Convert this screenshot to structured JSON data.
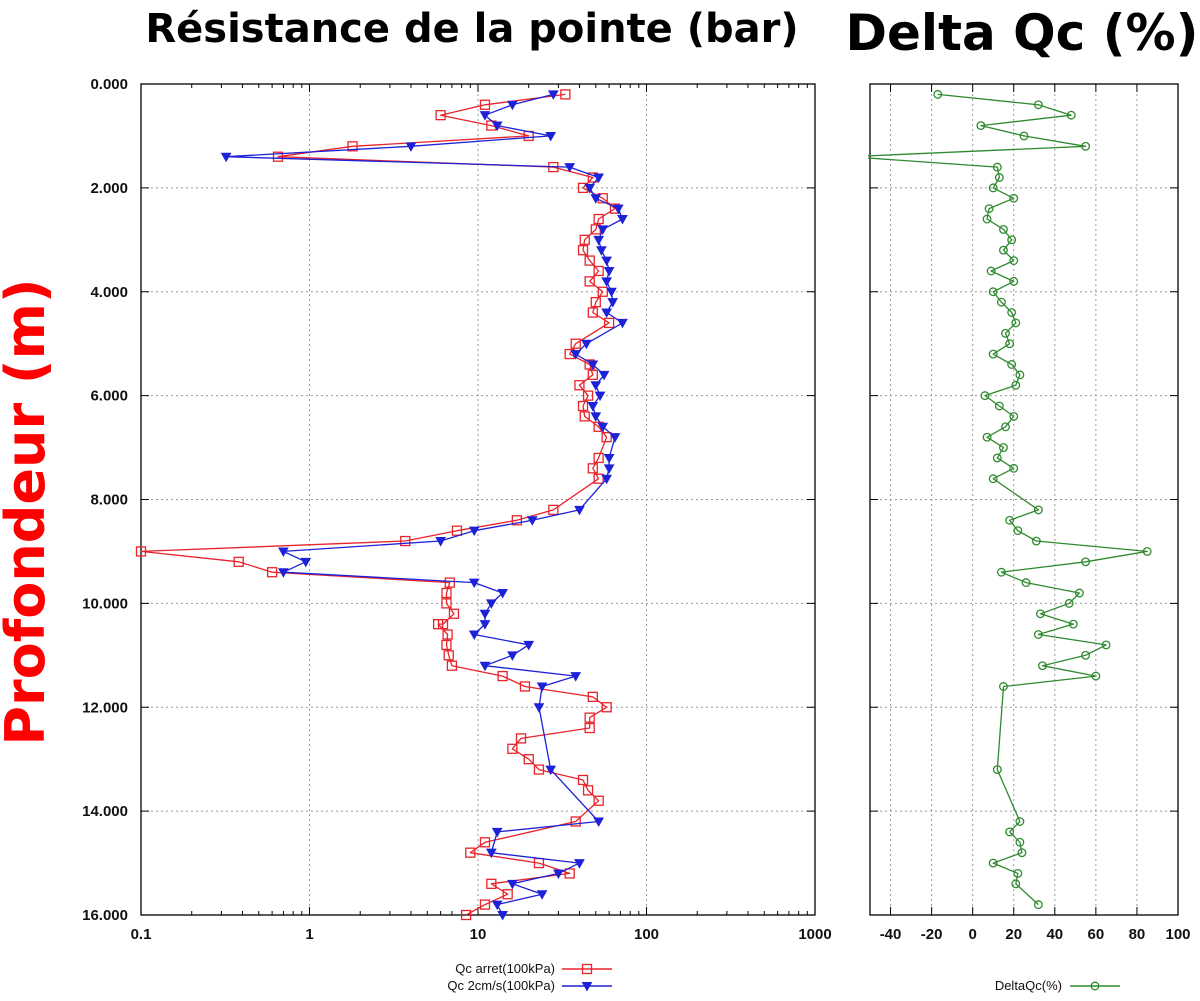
{
  "colors": {
    "red": "#e8232a",
    "blue": "#1d22d6",
    "green": "#2f8a2f",
    "axis": "#000000",
    "grid": "#9a9a9a",
    "ylabel": "#ff0000"
  },
  "chart_data": [
    {
      "type": "line",
      "title": "Résistance de la pointe (bar)",
      "ylabel": "Profondeur (m)",
      "xscale": "log",
      "xlim": [
        0.1,
        1000
      ],
      "ylim": [
        0,
        16
      ],
      "yinverted": true,
      "grid": true,
      "legend_position": "bottom",
      "xticks": [
        "0.1",
        "1",
        "10",
        "100",
        "1000"
      ],
      "xtick_values": [
        0.1,
        1,
        10,
        100,
        1000
      ],
      "yticks": [
        "0.000",
        "2.000",
        "4.000",
        "6.000",
        "8.000",
        "10.000",
        "12.000",
        "14.000",
        "16.000"
      ],
      "ytick_values": [
        0,
        2,
        4,
        6,
        8,
        10,
        12,
        14,
        16
      ],
      "series": [
        {
          "name": "Qc arret(100kPa)",
          "color": "#e8232a",
          "marker": "square",
          "points": [
            [
              33,
              0.2
            ],
            [
              11,
              0.4
            ],
            [
              6,
              0.6
            ],
            [
              12,
              0.8
            ],
            [
              20,
              1.0
            ],
            [
              1.8,
              1.2
            ],
            [
              0.65,
              1.4
            ],
            [
              28,
              1.6
            ],
            [
              48,
              1.8
            ],
            [
              42,
              2.0
            ],
            [
              55,
              2.2
            ],
            [
              65,
              2.4
            ],
            [
              52,
              2.6
            ],
            [
              50,
              2.8
            ],
            [
              43,
              3.0
            ],
            [
              42,
              3.2
            ],
            [
              46,
              3.4
            ],
            [
              52,
              3.6
            ],
            [
              46,
              3.8
            ],
            [
              55,
              4.0
            ],
            [
              50,
              4.2
            ],
            [
              48,
              4.4
            ],
            [
              60,
              4.6
            ],
            [
              38,
              5.0
            ],
            [
              35,
              5.2
            ],
            [
              46,
              5.4
            ],
            [
              48,
              5.6
            ],
            [
              40,
              5.8
            ],
            [
              45,
              6.0
            ],
            [
              42,
              6.2
            ],
            [
              43,
              6.4
            ],
            [
              52,
              6.6
            ],
            [
              58,
              6.8
            ],
            [
              52,
              7.2
            ],
            [
              48,
              7.4
            ],
            [
              52,
              7.6
            ],
            [
              28,
              8.2
            ],
            [
              17,
              8.4
            ],
            [
              7.5,
              8.6
            ],
            [
              3.7,
              8.8
            ],
            [
              0.1,
              9.0
            ],
            [
              0.38,
              9.2
            ],
            [
              0.6,
              9.4
            ],
            [
              6.8,
              9.6
            ],
            [
              6.5,
              9.8
            ],
            [
              6.5,
              10.0
            ],
            [
              7.2,
              10.2
            ],
            [
              6.2,
              10.4
            ],
            [
              5.8,
              10.4
            ],
            [
              6.6,
              10.6
            ],
            [
              6.5,
              10.8
            ],
            [
              6.7,
              11.0
            ],
            [
              7.0,
              11.2
            ],
            [
              14,
              11.4
            ],
            [
              19,
              11.6
            ],
            [
              48,
              11.8
            ],
            [
              58,
              12.0
            ],
            [
              46,
              12.2
            ],
            [
              46,
              12.4
            ],
            [
              18,
              12.6
            ],
            [
              16,
              12.8
            ],
            [
              20,
              13.0
            ],
            [
              23,
              13.2
            ],
            [
              42,
              13.4
            ],
            [
              45,
              13.6
            ],
            [
              52,
              13.8
            ],
            [
              38,
              14.2
            ],
            [
              11,
              14.6
            ],
            [
              9,
              14.8
            ],
            [
              23,
              15.0
            ],
            [
              35,
              15.2
            ],
            [
              12,
              15.4
            ],
            [
              15,
              15.6
            ],
            [
              11,
              15.8
            ],
            [
              8.5,
              16.0
            ]
          ]
        },
        {
          "name": "Qc 2cm/s(100kPa)",
          "color": "#1d22d6",
          "marker": "triangle-down",
          "points": [
            [
              28,
              0.2
            ],
            [
              16,
              0.4
            ],
            [
              11,
              0.6
            ],
            [
              13,
              0.8
            ],
            [
              27,
              1.0
            ],
            [
              4.0,
              1.2
            ],
            [
              0.32,
              1.4
            ],
            [
              35,
              1.6
            ],
            [
              52,
              1.8
            ],
            [
              46,
              2.0
            ],
            [
              50,
              2.2
            ],
            [
              68,
              2.4
            ],
            [
              72,
              2.6
            ],
            [
              55,
              2.8
            ],
            [
              52,
              3.0
            ],
            [
              54,
              3.2
            ],
            [
              58,
              3.4
            ],
            [
              60,
              3.6
            ],
            [
              58,
              3.8
            ],
            [
              62,
              4.0
            ],
            [
              63,
              4.2
            ],
            [
              58,
              4.4
            ],
            [
              72,
              4.6
            ],
            [
              44,
              5.0
            ],
            [
              38,
              5.2
            ],
            [
              48,
              5.4
            ],
            [
              56,
              5.6
            ],
            [
              50,
              5.8
            ],
            [
              53,
              6.0
            ],
            [
              48,
              6.2
            ],
            [
              50,
              6.4
            ],
            [
              55,
              6.6
            ],
            [
              65,
              6.8
            ],
            [
              60,
              7.2
            ],
            [
              60,
              7.4
            ],
            [
              58,
              7.6
            ],
            [
              40,
              8.2
            ],
            [
              21,
              8.4
            ],
            [
              9.5,
              8.6
            ],
            [
              6.0,
              8.8
            ],
            [
              0.7,
              9.0
            ],
            [
              0.95,
              9.2
            ],
            [
              0.7,
              9.4
            ],
            [
              9.5,
              9.6
            ],
            [
              14,
              9.8
            ],
            [
              12,
              10.0
            ],
            [
              11,
              10.2
            ],
            [
              11,
              10.4
            ],
            [
              9.5,
              10.6
            ],
            [
              20,
              10.8
            ],
            [
              16,
              11.0
            ],
            [
              11,
              11.2
            ],
            [
              38,
              11.4
            ],
            [
              24,
              11.6
            ],
            [
              23,
              12.0
            ],
            [
              27,
              13.2
            ],
            [
              52,
              14.2
            ],
            [
              13,
              14.4
            ],
            [
              12,
              14.8
            ],
            [
              40,
              15.0
            ],
            [
              30,
              15.2
            ],
            [
              16,
              15.4
            ],
            [
              24,
              15.6
            ],
            [
              13,
              15.8
            ],
            [
              14,
              16.0
            ]
          ]
        }
      ]
    },
    {
      "type": "line",
      "title": "Delta Qc (%)",
      "xlim": [
        -50,
        100
      ],
      "ylim": [
        0,
        16
      ],
      "yinverted": true,
      "grid": true,
      "legend_position": "bottom",
      "xticks": [
        "-40",
        "-20",
        "0",
        "20",
        "40",
        "60",
        "80",
        "100"
      ],
      "xtick_values": [
        -40,
        -20,
        0,
        20,
        40,
        60,
        80,
        100
      ],
      "series": [
        {
          "name": "DeltaQc(%)",
          "color": "#2f8a2f",
          "marker": "circle",
          "points": [
            [
              -17,
              0.2
            ],
            [
              32,
              0.4
            ],
            [
              48,
              0.6
            ],
            [
              4,
              0.8
            ],
            [
              25,
              1.0
            ],
            [
              55,
              1.2
            ],
            [
              -60,
              1.4
            ],
            [
              12,
              1.6
            ],
            [
              13,
              1.8
            ],
            [
              10,
              2.0
            ],
            [
              20,
              2.2
            ],
            [
              8,
              2.4
            ],
            [
              7,
              2.6
            ],
            [
              15,
              2.8
            ],
            [
              19,
              3.0
            ],
            [
              15,
              3.2
            ],
            [
              20,
              3.4
            ],
            [
              9,
              3.6
            ],
            [
              20,
              3.8
            ],
            [
              10,
              4.0
            ],
            [
              14,
              4.2
            ],
            [
              19,
              4.4
            ],
            [
              21,
              4.6
            ],
            [
              16,
              4.8
            ],
            [
              18,
              5.0
            ],
            [
              10,
              5.2
            ],
            [
              19,
              5.4
            ],
            [
              23,
              5.6
            ],
            [
              21,
              5.8
            ],
            [
              6,
              6.0
            ],
            [
              13,
              6.2
            ],
            [
              20,
              6.4
            ],
            [
              16,
              6.6
            ],
            [
              7,
              6.8
            ],
            [
              15,
              7.0
            ],
            [
              12,
              7.2
            ],
            [
              20,
              7.4
            ],
            [
              10,
              7.6
            ],
            [
              32,
              8.2
            ],
            [
              18,
              8.4
            ],
            [
              22,
              8.6
            ],
            [
              31,
              8.8
            ],
            [
              85,
              9.0
            ],
            [
              55,
              9.2
            ],
            [
              14,
              9.4
            ],
            [
              26,
              9.6
            ],
            [
              52,
              9.8
            ],
            [
              47,
              10.0
            ],
            [
              33,
              10.2
            ],
            [
              49,
              10.4
            ],
            [
              32,
              10.6
            ],
            [
              65,
              10.8
            ],
            [
              55,
              11.0
            ],
            [
              34,
              11.2
            ],
            [
              60,
              11.4
            ],
            [
              15,
              11.6
            ],
            [
              12,
              13.2
            ],
            [
              23,
              14.2
            ],
            [
              18,
              14.4
            ],
            [
              23,
              14.6
            ],
            [
              24,
              14.8
            ],
            [
              10,
              15.0
            ],
            [
              22,
              15.2
            ],
            [
              21,
              15.4
            ],
            [
              32,
              15.8
            ]
          ]
        }
      ]
    }
  ]
}
